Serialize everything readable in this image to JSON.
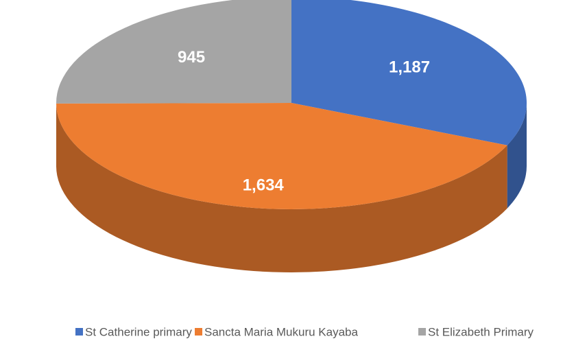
{
  "chart_data": {
    "type": "pie3d",
    "categories": [
      "St Catherine primary",
      "Sancta Maria Mukuru Kayaba",
      "St Elizabeth Primary"
    ],
    "values": [
      1187,
      1634,
      945
    ],
    "value_labels": [
      "1,187",
      "1,634",
      "945"
    ],
    "colors": [
      "#4472c4",
      "#ed7d31",
      "#a5a5a5"
    ],
    "legend": "bottom"
  }
}
